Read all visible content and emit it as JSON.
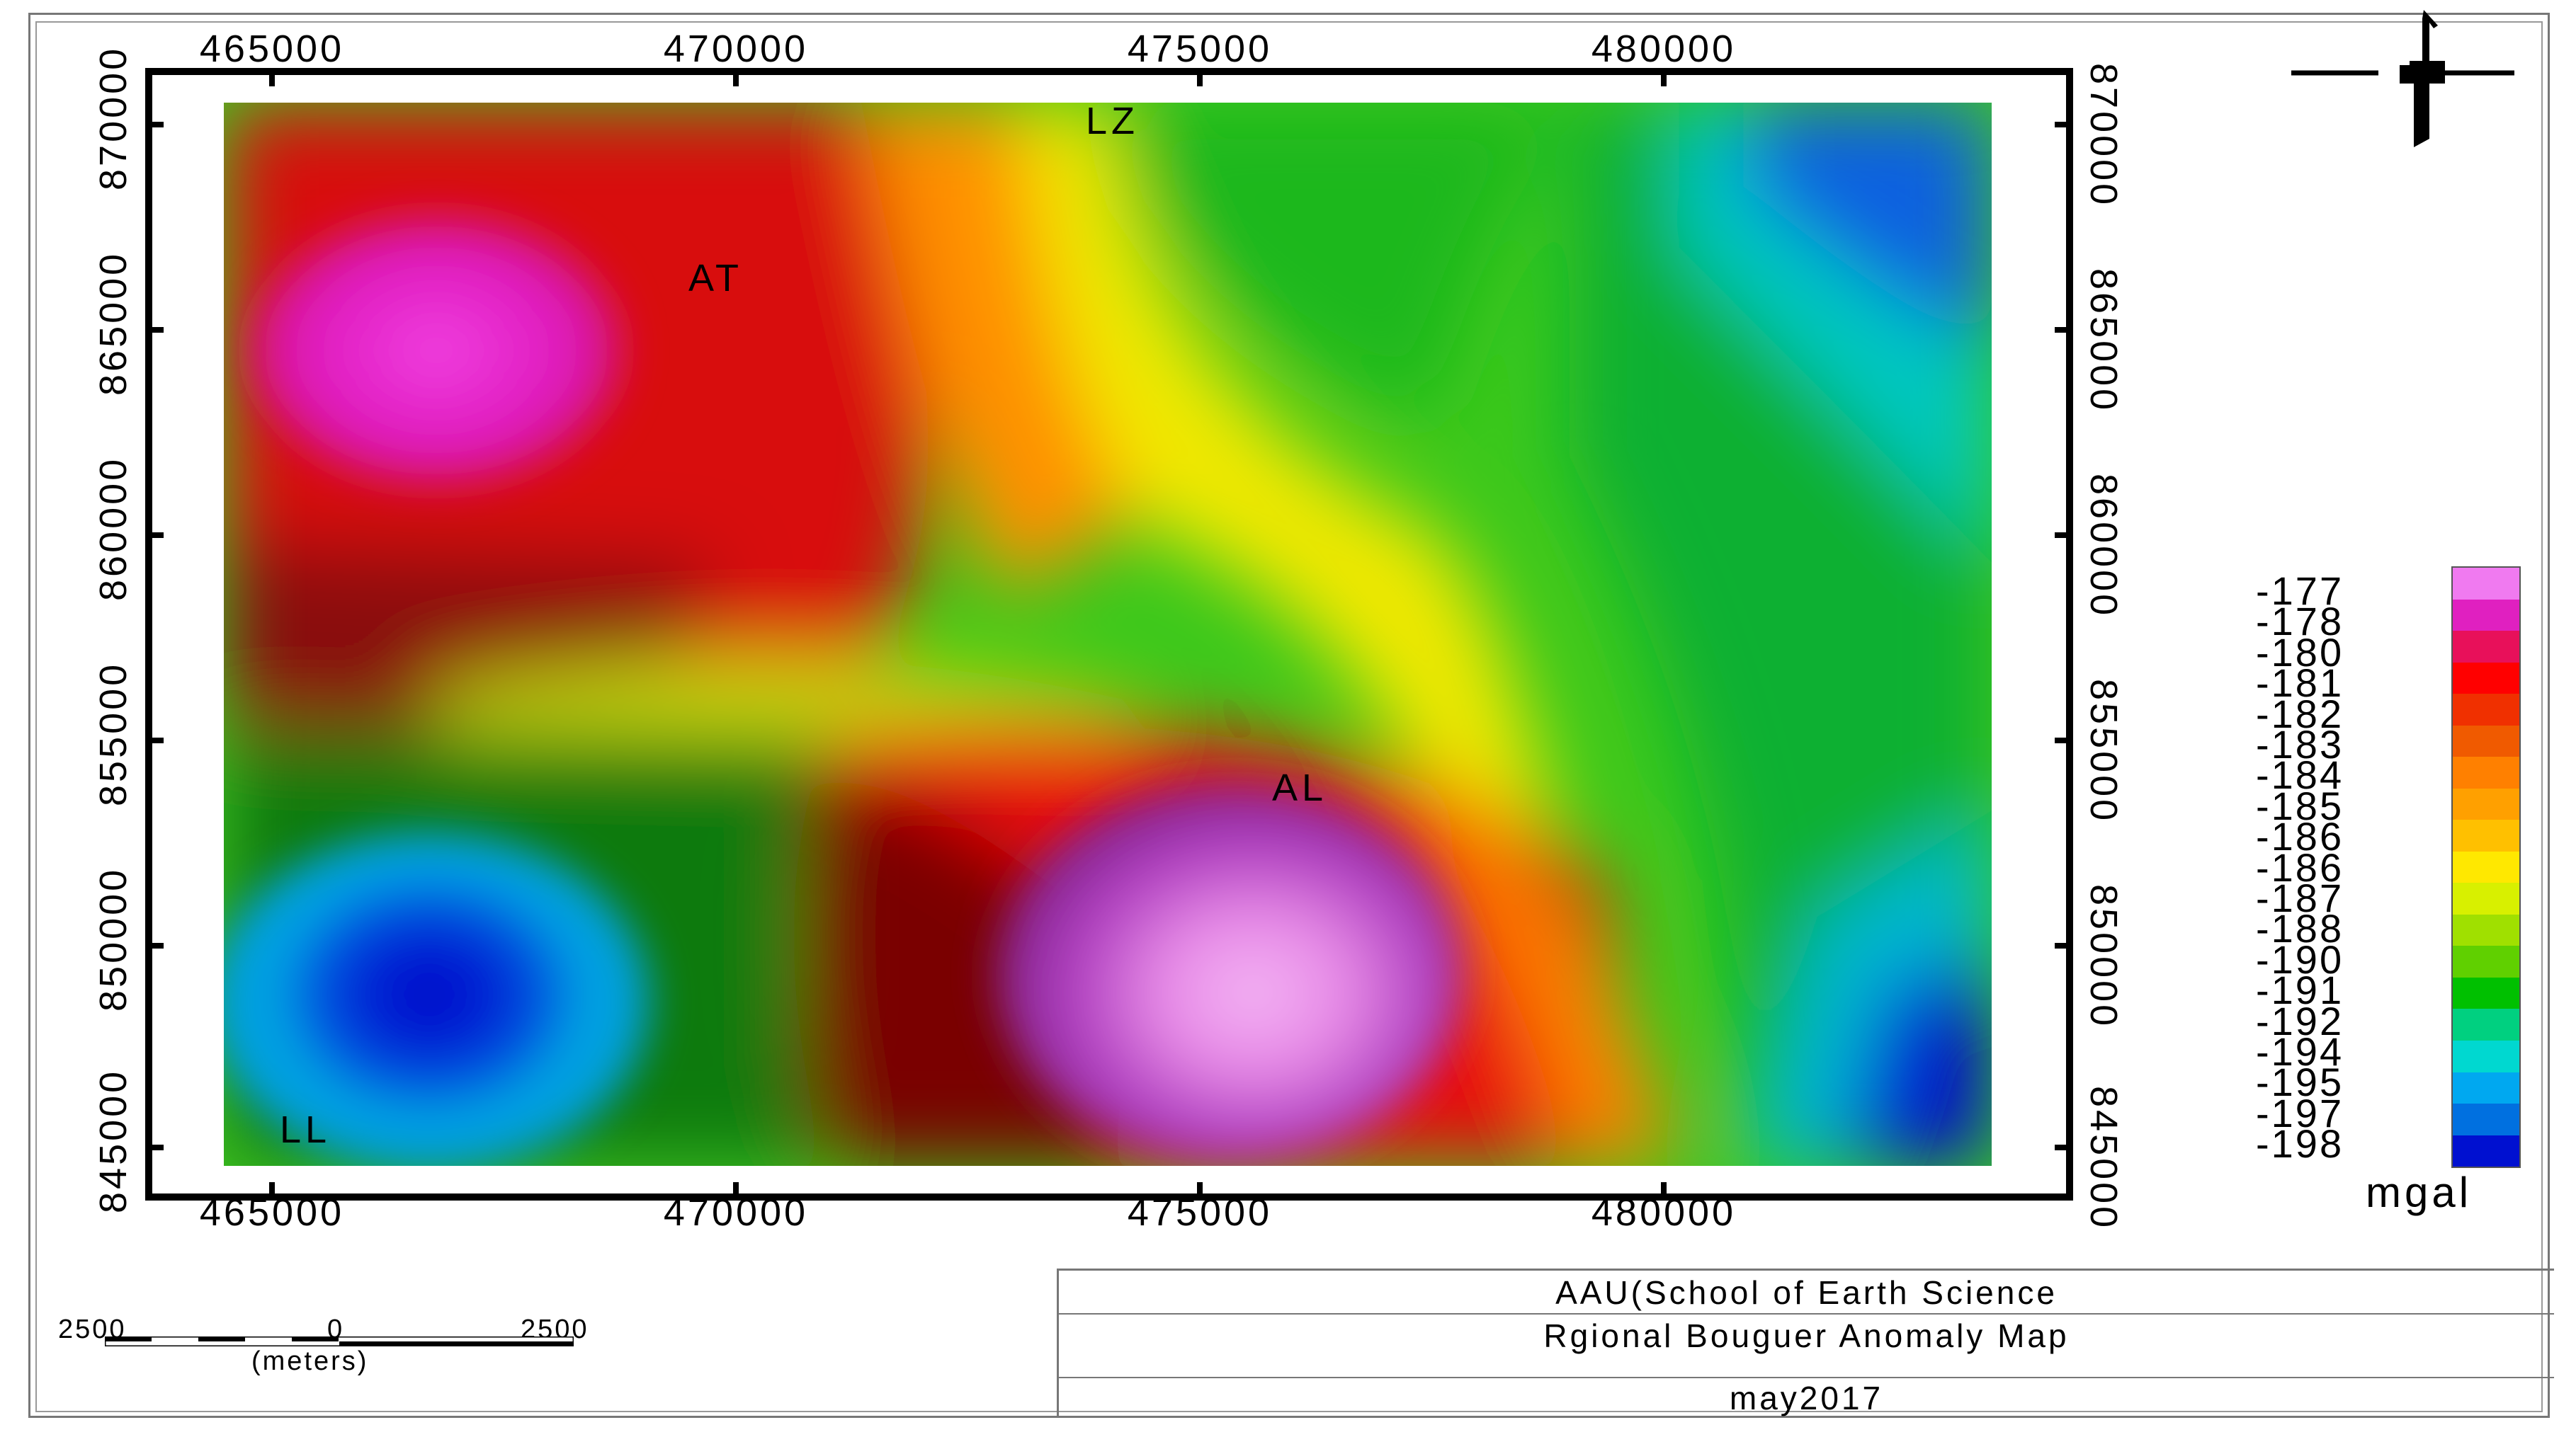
{
  "map": {
    "x_tick_labels": [
      "465000",
      "470000",
      "475000",
      "480000"
    ],
    "y_tick_labels": [
      "870000",
      "865000",
      "860000",
      "855000",
      "850000",
      "845000"
    ],
    "site_labels": [
      "LZ",
      "AT",
      "AL",
      "LL"
    ]
  },
  "legend": {
    "values": [
      "-177",
      "-178",
      "-180",
      "-181",
      "-182",
      "-183",
      "-184",
      "-185",
      "-186",
      "-186",
      "-187",
      "-188",
      "-190",
      "-191",
      "-192",
      "-194",
      "-195",
      "-197",
      "-198"
    ],
    "unit": "mgal",
    "colors": [
      "#f07af0",
      "#e020c0",
      "#e8105a",
      "#ff0000",
      "#f03000",
      "#f05a00",
      "#ff8000",
      "#ffa000",
      "#ffc000",
      "#ffe800",
      "#d8f000",
      "#a0e000",
      "#60d000",
      "#00c000",
      "#00d080",
      "#00d8d0",
      "#00a8f0",
      "#0070e0",
      "#0010d0"
    ]
  },
  "title_block": {
    "organization": "AAU(School of Earth Science",
    "title": "Rgional Bouguer Anomaly Map",
    "date": "may2017"
  },
  "scale_bar": {
    "left_label": "2500",
    "center_label": "0",
    "right_label": "2500",
    "unit": "(meters)"
  }
}
